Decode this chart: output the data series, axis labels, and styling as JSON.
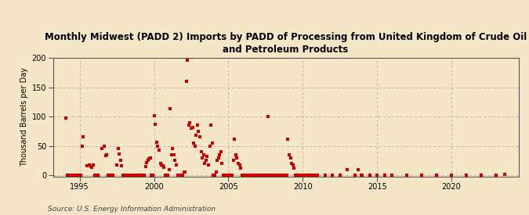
{
  "title": "Monthly Midwest (PADD 2) Imports by PADD of Processing from United Kingdom of Crude Oil\nand Petroleum Products",
  "ylabel": "Thousand Barrels per Day",
  "source": "Source: U.S. Energy Information Administration",
  "background_color": "#f5e6c8",
  "plot_bg_color": "#f5e6c8",
  "marker_color": "#cc0000",
  "marker_size": 9,
  "xlim": [
    1993.2,
    2024.5
  ],
  "ylim": [
    -2,
    200
  ],
  "yticks": [
    0,
    50,
    100,
    150,
    200
  ],
  "xticks": [
    1995,
    2000,
    2005,
    2010,
    2015,
    2020
  ],
  "data": [
    [
      1994.08,
      97
    ],
    [
      1994.17,
      0
    ],
    [
      1994.25,
      0
    ],
    [
      1994.33,
      0
    ],
    [
      1994.42,
      0
    ],
    [
      1994.5,
      0
    ],
    [
      1994.58,
      0
    ],
    [
      1994.67,
      0
    ],
    [
      1994.75,
      0
    ],
    [
      1994.83,
      0
    ],
    [
      1994.92,
      0
    ],
    [
      1995.0,
      0
    ],
    [
      1995.08,
      0
    ],
    [
      1995.17,
      50
    ],
    [
      1995.25,
      65
    ],
    [
      1995.5,
      16
    ],
    [
      1995.67,
      18
    ],
    [
      1995.75,
      15
    ],
    [
      1995.83,
      14
    ],
    [
      1995.92,
      17
    ],
    [
      1996.0,
      0
    ],
    [
      1996.08,
      0
    ],
    [
      1996.17,
      0
    ],
    [
      1996.25,
      0
    ],
    [
      1996.5,
      46
    ],
    [
      1996.67,
      50
    ],
    [
      1996.75,
      34
    ],
    [
      1996.83,
      35
    ],
    [
      1996.92,
      0
    ],
    [
      1997.0,
      0
    ],
    [
      1997.08,
      0
    ],
    [
      1997.17,
      0
    ],
    [
      1997.25,
      0
    ],
    [
      1997.5,
      17
    ],
    [
      1997.58,
      45
    ],
    [
      1997.67,
      36
    ],
    [
      1997.75,
      26
    ],
    [
      1997.83,
      16
    ],
    [
      1997.92,
      0
    ],
    [
      1998.0,
      0
    ],
    [
      1998.08,
      0
    ],
    [
      1998.17,
      0
    ],
    [
      1998.25,
      0
    ],
    [
      1998.33,
      0
    ],
    [
      1998.42,
      0
    ],
    [
      1998.5,
      0
    ],
    [
      1998.58,
      0
    ],
    [
      1998.67,
      0
    ],
    [
      1998.75,
      0
    ],
    [
      1998.83,
      0
    ],
    [
      1998.92,
      0
    ],
    [
      1999.0,
      0
    ],
    [
      1999.08,
      0
    ],
    [
      1999.17,
      0
    ],
    [
      1999.25,
      0
    ],
    [
      1999.33,
      0
    ],
    [
      1999.42,
      15
    ],
    [
      1999.5,
      22
    ],
    [
      1999.58,
      25
    ],
    [
      1999.67,
      28
    ],
    [
      1999.75,
      30
    ],
    [
      1999.83,
      0
    ],
    [
      1999.92,
      0
    ],
    [
      2000.0,
      102
    ],
    [
      2000.08,
      87
    ],
    [
      2000.17,
      56
    ],
    [
      2000.25,
      50
    ],
    [
      2000.33,
      43
    ],
    [
      2000.42,
      20
    ],
    [
      2000.5,
      18
    ],
    [
      2000.58,
      16
    ],
    [
      2000.67,
      14
    ],
    [
      2000.75,
      0
    ],
    [
      2000.83,
      0
    ],
    [
      2000.92,
      0
    ],
    [
      2001.0,
      10
    ],
    [
      2001.08,
      113
    ],
    [
      2001.17,
      35
    ],
    [
      2001.25,
      45
    ],
    [
      2001.33,
      35
    ],
    [
      2001.42,
      25
    ],
    [
      2001.5,
      18
    ],
    [
      2001.58,
      0
    ],
    [
      2001.67,
      0
    ],
    [
      2001.75,
      0
    ],
    [
      2001.83,
      0
    ],
    [
      2001.92,
      0
    ],
    [
      2002.0,
      5
    ],
    [
      2002.08,
      5
    ],
    [
      2002.17,
      160
    ],
    [
      2002.25,
      196
    ],
    [
      2002.33,
      85
    ],
    [
      2002.42,
      90
    ],
    [
      2002.5,
      80
    ],
    [
      2002.58,
      82
    ],
    [
      2002.67,
      55
    ],
    [
      2002.75,
      50
    ],
    [
      2002.83,
      68
    ],
    [
      2002.92,
      85
    ],
    [
      2003.0,
      75
    ],
    [
      2003.08,
      65
    ],
    [
      2003.17,
      40
    ],
    [
      2003.25,
      30
    ],
    [
      2003.33,
      35
    ],
    [
      2003.42,
      20
    ],
    [
      2003.5,
      25
    ],
    [
      2003.58,
      32
    ],
    [
      2003.67,
      18
    ],
    [
      2003.75,
      50
    ],
    [
      2003.83,
      85
    ],
    [
      2003.92,
      55
    ],
    [
      2004.0,
      0
    ],
    [
      2004.08,
      0
    ],
    [
      2004.17,
      5
    ],
    [
      2004.25,
      25
    ],
    [
      2004.33,
      30
    ],
    [
      2004.42,
      35
    ],
    [
      2004.5,
      40
    ],
    [
      2004.58,
      20
    ],
    [
      2004.67,
      0
    ],
    [
      2004.75,
      0
    ],
    [
      2004.83,
      0
    ],
    [
      2004.92,
      0
    ],
    [
      2005.0,
      0
    ],
    [
      2005.08,
      0
    ],
    [
      2005.17,
      0
    ],
    [
      2005.25,
      0
    ],
    [
      2005.33,
      25
    ],
    [
      2005.42,
      62
    ],
    [
      2005.5,
      35
    ],
    [
      2005.58,
      30
    ],
    [
      2005.67,
      20
    ],
    [
      2005.75,
      18
    ],
    [
      2005.83,
      12
    ],
    [
      2005.92,
      0
    ],
    [
      2006.0,
      0
    ],
    [
      2006.08,
      0
    ],
    [
      2006.17,
      0
    ],
    [
      2006.25,
      0
    ],
    [
      2006.33,
      0
    ],
    [
      2006.42,
      0
    ],
    [
      2006.5,
      0
    ],
    [
      2006.58,
      0
    ],
    [
      2006.67,
      0
    ],
    [
      2006.75,
      0
    ],
    [
      2006.83,
      0
    ],
    [
      2006.92,
      0
    ],
    [
      2007.0,
      0
    ],
    [
      2007.08,
      0
    ],
    [
      2007.17,
      0
    ],
    [
      2007.25,
      0
    ],
    [
      2007.33,
      0
    ],
    [
      2007.42,
      0
    ],
    [
      2007.5,
      0
    ],
    [
      2007.58,
      0
    ],
    [
      2007.67,
      100
    ],
    [
      2007.75,
      0
    ],
    [
      2007.83,
      0
    ],
    [
      2007.92,
      0
    ],
    [
      2008.0,
      0
    ],
    [
      2008.08,
      0
    ],
    [
      2008.17,
      0
    ],
    [
      2008.25,
      0
    ],
    [
      2008.33,
      0
    ],
    [
      2008.42,
      0
    ],
    [
      2008.5,
      0
    ],
    [
      2008.58,
      0
    ],
    [
      2008.67,
      0
    ],
    [
      2008.75,
      0
    ],
    [
      2008.83,
      0
    ],
    [
      2008.92,
      0
    ],
    [
      2009.0,
      62
    ],
    [
      2009.08,
      35
    ],
    [
      2009.17,
      30
    ],
    [
      2009.25,
      20
    ],
    [
      2009.33,
      18
    ],
    [
      2009.42,
      12
    ],
    [
      2009.5,
      0
    ],
    [
      2009.58,
      0
    ],
    [
      2009.67,
      0
    ],
    [
      2009.75,
      0
    ],
    [
      2009.83,
      0
    ],
    [
      2009.92,
      0
    ],
    [
      2010.0,
      0
    ],
    [
      2010.08,
      0
    ],
    [
      2010.17,
      0
    ],
    [
      2010.25,
      0
    ],
    [
      2010.33,
      0
    ],
    [
      2010.42,
      0
    ],
    [
      2010.5,
      0
    ],
    [
      2010.58,
      0
    ],
    [
      2010.67,
      0
    ],
    [
      2010.75,
      0
    ],
    [
      2010.83,
      0
    ],
    [
      2010.92,
      0
    ],
    [
      2011.0,
      0
    ],
    [
      2011.5,
      0
    ],
    [
      2012.0,
      0
    ],
    [
      2012.5,
      0
    ],
    [
      2013.0,
      10
    ],
    [
      2013.5,
      0
    ],
    [
      2013.75,
      10
    ],
    [
      2013.92,
      0
    ],
    [
      2014.0,
      0
    ],
    [
      2014.5,
      0
    ],
    [
      2015.0,
      0
    ],
    [
      2015.5,
      0
    ],
    [
      2016.0,
      0
    ],
    [
      2017.0,
      0
    ],
    [
      2018.0,
      0
    ],
    [
      2019.0,
      0
    ],
    [
      2020.0,
      0
    ],
    [
      2021.0,
      0
    ],
    [
      2022.0,
      0
    ],
    [
      2023.0,
      0
    ],
    [
      2023.58,
      2
    ]
  ]
}
